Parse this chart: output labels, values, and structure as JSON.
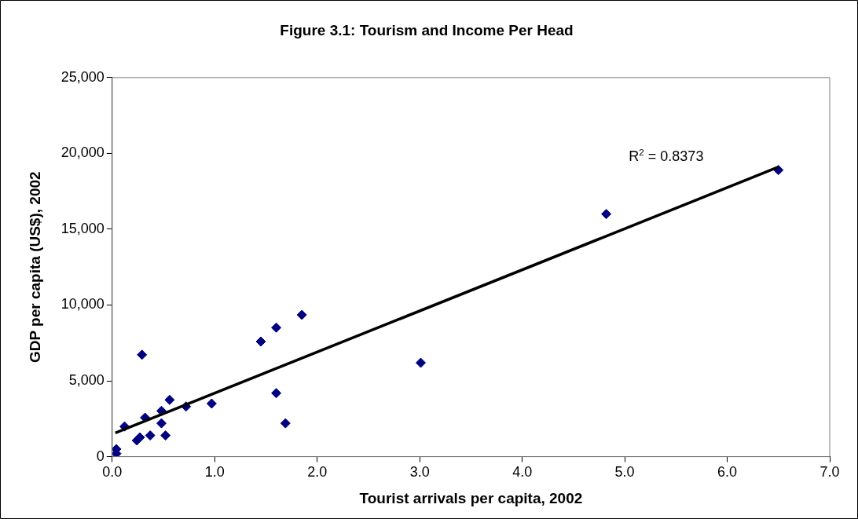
{
  "chart_data": {
    "type": "scatter",
    "title": "Figure 3.1: Tourism and Income Per Head",
    "xlabel": "Tourist arrivals per capita, 2002",
    "ylabel": "GDP per capita (US$), 2002",
    "series": [
      {
        "color": "#000080",
        "marker": "diamond",
        "x": [
          0.04,
          0.04,
          0.12,
          0.29,
          0.24,
          0.27,
          0.32,
          0.37,
          0.48,
          0.48,
          0.52,
          0.56,
          0.72,
          0.97,
          1.45,
          1.6,
          1.85,
          1.6,
          1.69,
          3.01,
          4.82,
          6.5
        ],
        "values": [
          500,
          200,
          1990,
          6720,
          1070,
          1270,
          2570,
          1400,
          3020,
          2200,
          1400,
          3740,
          3310,
          3500,
          7590,
          8510,
          9350,
          4190,
          2200,
          6190,
          16000,
          18900
        ]
      },
      {
        "type": "line",
        "color": "#000000",
        "x": [
          0.03,
          6.5
        ],
        "values": [
          1560,
          19100
        ]
      }
    ],
    "xlim": [
      0,
      7
    ],
    "xticks": [
      {
        "value": 0,
        "label": "0.0"
      },
      {
        "value": 1,
        "label": "1.0"
      },
      {
        "value": 2,
        "label": "2.0"
      },
      {
        "value": 3,
        "label": "3.0"
      },
      {
        "value": 4,
        "label": "4.0"
      },
      {
        "value": 5,
        "label": "5.0"
      },
      {
        "value": 6,
        "label": "6.0"
      },
      {
        "value": 7,
        "label": "7.0"
      }
    ],
    "ylim": [
      0,
      25000
    ],
    "yticks": [
      0,
      {
        "value": 5000,
        "label": "5,000"
      },
      {
        "value": 10000,
        "label": "10,000"
      },
      {
        "value": 15000,
        "label": "15,000"
      },
      {
        "value": 20000,
        "label": "20,000"
      },
      {
        "value": 25000,
        "label": "25,000"
      }
    ],
    "grid": false,
    "legend": false,
    "annotations": [
      "R$^{2}$ = 0.8373"
    ]
  }
}
